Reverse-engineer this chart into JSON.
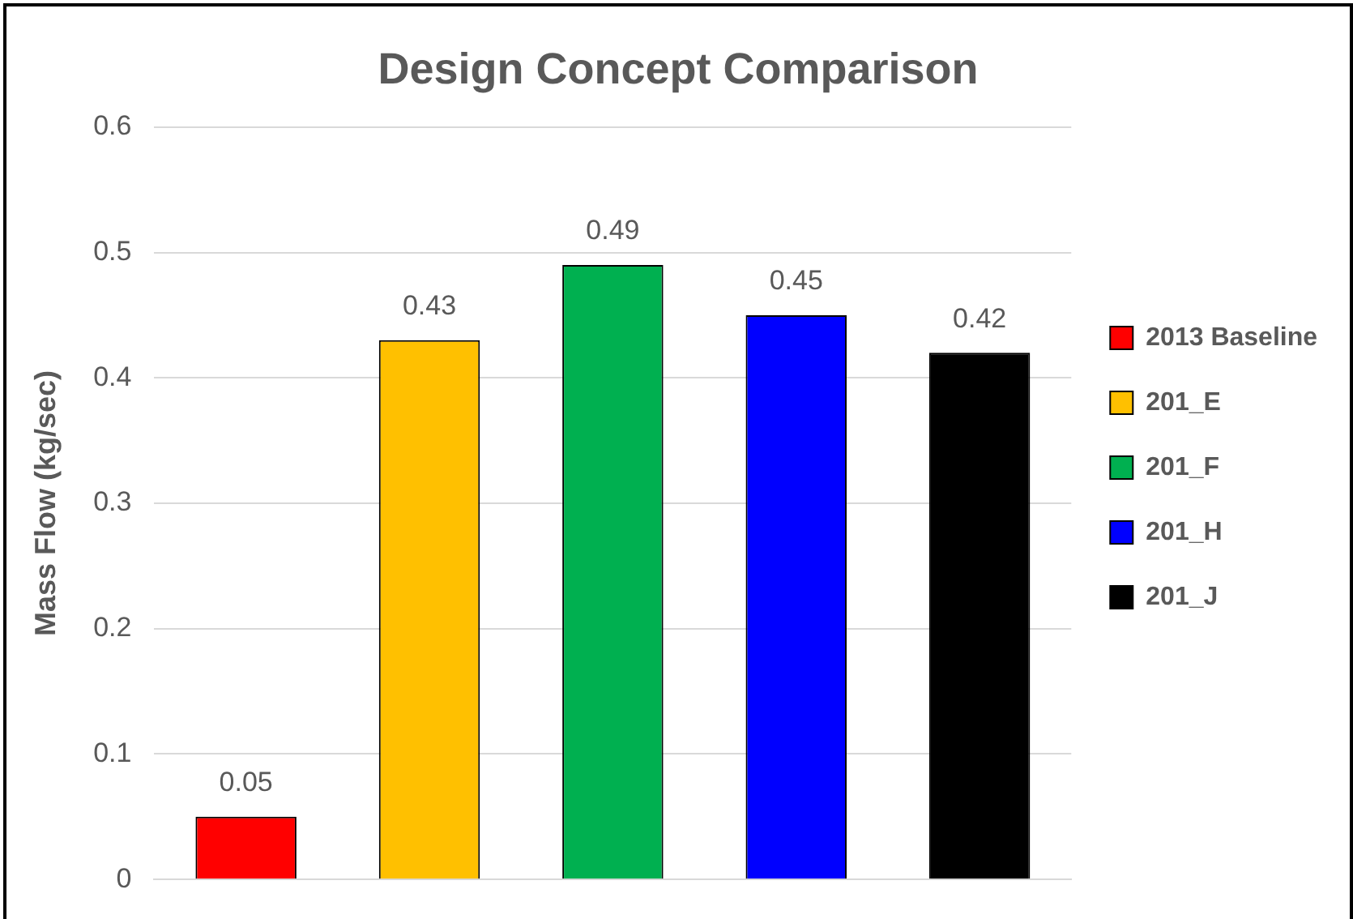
{
  "chart_data": {
    "type": "bar",
    "title": "Design Concept Comparison",
    "ylabel": "Mass Flow (kg/sec)",
    "categories": [
      null,
      null,
      null,
      null,
      null
    ],
    "series": [
      {
        "name": "2013 Baseline",
        "color": "#ff0000",
        "values": [
          0.05,
          null,
          null,
          null,
          null
        ]
      },
      {
        "name": "201_E",
        "color": "#ffc000",
        "values": [
          null,
          0.43,
          null,
          null,
          null
        ]
      },
      {
        "name": "201_F",
        "color": "#00b050",
        "values": [
          null,
          null,
          0.49,
          null,
          null
        ]
      },
      {
        "name": "201_H",
        "color": "#0000ff",
        "values": [
          null,
          null,
          null,
          0.45,
          null
        ]
      },
      {
        "name": "201_J",
        "color": "#000000",
        "values": [
          null,
          null,
          null,
          null,
          0.42
        ]
      }
    ],
    "ylim": [
      0,
      0.6
    ],
    "yticks": [
      0,
      0.1,
      0.2,
      0.3,
      0.4,
      0.5,
      0.6
    ],
    "grid": "y",
    "legend": "right",
    "data_labels": true
  }
}
